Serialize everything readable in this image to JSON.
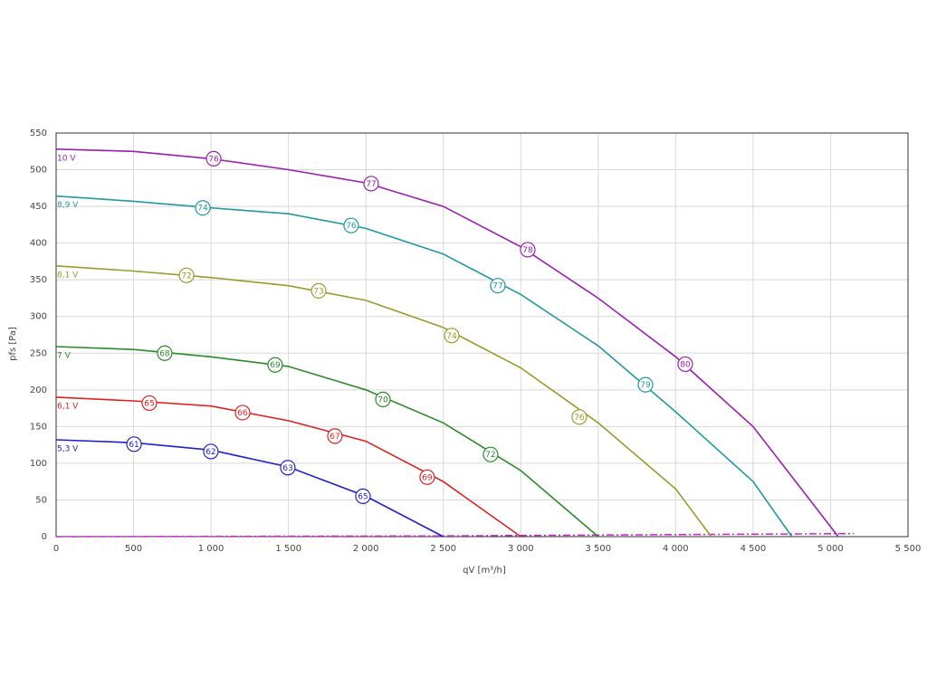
{
  "chart_data": {
    "type": "line",
    "x_label": "qV [m³/h]",
    "y_label": "pfs [Pa]",
    "xlim": [
      0,
      5500
    ],
    "ylim": [
      0,
      550
    ],
    "xticks": [
      0,
      500,
      {
        "value": 1000,
        "label": "1 000"
      },
      {
        "value": 1500,
        "label": "1 500"
      },
      {
        "value": 2000,
        "label": "2 000"
      },
      {
        "value": 2500,
        "label": "2 500"
      },
      {
        "value": 3000,
        "label": "3 000"
      },
      {
        "value": 3500,
        "label": "3 500"
      },
      {
        "value": 4000,
        "label": "4 000"
      },
      {
        "value": 4500,
        "label": "4 500"
      },
      {
        "value": 5000,
        "label": "5 000"
      },
      {
        "value": 5500,
        "label": "5 500"
      }
    ],
    "yticks": [
      0,
      50,
      100,
      150,
      200,
      250,
      300,
      350,
      400,
      450,
      500,
      550
    ],
    "grid": true,
    "series": [
      {
        "name": "10 V",
        "color": "#9a1fb0",
        "x": [
          0,
          500,
          1000,
          1500,
          2000,
          2500,
          3000,
          3500,
          4000,
          4500,
          5050
        ],
        "values": [
          528,
          525,
          515,
          500,
          482,
          450,
          395,
          325,
          245,
          150,
          0
        ],
        "markers": {
          "x": [
            1017,
            2034,
            3045,
            4062
          ],
          "y": [
            515,
            481,
            391,
            235
          ],
          "labels": [
            76,
            77,
            78,
            80
          ]
        }
      },
      {
        "name": "8,9 V",
        "color": "#1f9aa0",
        "x": [
          0,
          500,
          1000,
          1500,
          2000,
          2500,
          3000,
          3500,
          4000,
          4500,
          4750
        ],
        "values": [
          464,
          457,
          448,
          440,
          420,
          385,
          330,
          260,
          170,
          75,
          0
        ],
        "markers": {
          "x": [
            947,
            1905,
            2852,
            3805
          ],
          "y": [
            448,
            424,
            342,
            207
          ],
          "labels": [
            74,
            76,
            77,
            79
          ]
        }
      },
      {
        "name": "8,1 V",
        "color": "#9a9a2a",
        "x": [
          0,
          500,
          1000,
          1500,
          2000,
          2500,
          3000,
          3500,
          4000,
          4230
        ],
        "values": [
          369,
          362,
          353,
          342,
          322,
          285,
          230,
          155,
          65,
          0
        ],
        "markers": {
          "x": [
            842,
            1695,
            2554,
            3378
          ],
          "y": [
            356,
            335,
            274,
            163
          ],
          "labels": [
            72,
            73,
            74,
            76
          ]
        }
      },
      {
        "name": "7 V",
        "color": "#2a8a2a",
        "x": [
          0,
          500,
          1000,
          1500,
          2000,
          2500,
          3000,
          3500
        ],
        "values": [
          259,
          255,
          245,
          232,
          200,
          155,
          90,
          0
        ],
        "markers": {
          "x": [
            701,
            1414,
            2110,
            2805
          ],
          "y": [
            250,
            234,
            187,
            112
          ],
          "labels": [
            68,
            69,
            70,
            72
          ]
        }
      },
      {
        "name": "6,1 V",
        "color": "#e02020",
        "x": [
          0,
          500,
          1000,
          1500,
          2000,
          2500,
          3000
        ],
        "values": [
          190,
          185,
          178,
          158,
          130,
          75,
          0
        ],
        "markers": {
          "x": [
            602,
            1204,
            1800,
            2396
          ],
          "y": [
            182,
            169,
            137,
            81
          ],
          "labels": [
            65,
            66,
            67,
            69
          ]
        }
      },
      {
        "name": "5,3 V",
        "color": "#2020d0",
        "x": [
          0,
          500,
          1000,
          1500,
          2000,
          2500
        ],
        "values": [
          132,
          128,
          118,
          95,
          55,
          0
        ],
        "markers": {
          "x": [
            503,
            999,
            1496,
            1981
          ],
          "y": [
            126,
            116,
            94,
            55
          ],
          "labels": [
            61,
            62,
            63,
            65
          ]
        }
      }
    ],
    "system_curve": {
      "color": "#d020d0",
      "x": [
        0,
        2500,
        5050,
        5150
      ],
      "values": [
        0,
        1,
        4,
        4
      ]
    }
  }
}
